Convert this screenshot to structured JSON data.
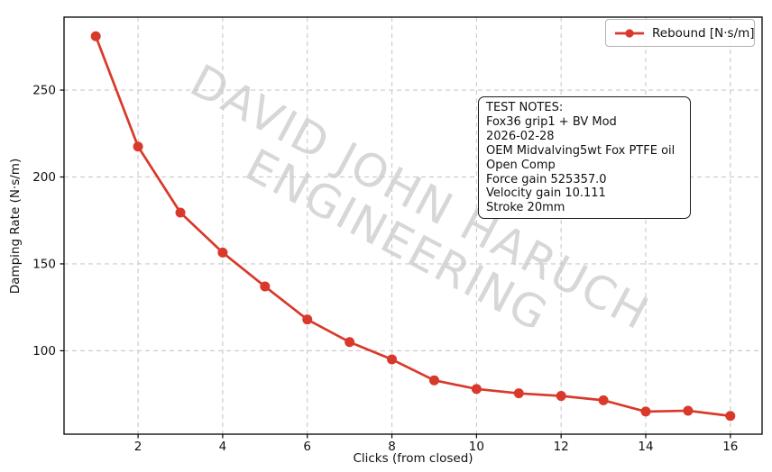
{
  "figure": {
    "watermark": {
      "line1": "DAVID JOHN HARUCH",
      "line2": "ENGINEERING",
      "color": "#d7d7d7"
    },
    "legend": {
      "label": "Rebound [N·s/m]"
    },
    "notes": {
      "lines": [
        "TEST NOTES:",
        "Fox36 grip1 + BV Mod",
        "2026-02-28",
        "OEM Midvalving5wt Fox PTFE oil",
        "Open Comp",
        "Force gain 525357.0",
        "Velocity gain 10.111",
        "Stroke 20mm"
      ]
    }
  },
  "chart_data": {
    "type": "line",
    "title": "",
    "xlabel": "Clicks (from closed)",
    "ylabel": "Damping Rate (N·s/m)",
    "x": [
      1,
      2,
      3,
      4,
      5,
      6,
      7,
      8,
      9,
      10,
      11,
      12,
      13,
      14,
      15,
      16
    ],
    "series": [
      {
        "name": "Rebound [N·s/m]",
        "color": "#d9392b",
        "marker": "circle",
        "values": [
          281,
          217.5,
          179.5,
          156.5,
          137,
          118,
          105,
          95,
          83,
          78,
          75.5,
          74,
          71.5,
          65,
          65.5,
          62.5
        ]
      }
    ],
    "xlim": [
      0.25,
      16.75
    ],
    "ylim": [
      52,
      292
    ],
    "xticks": [
      2,
      4,
      6,
      8,
      10,
      12,
      14,
      16
    ],
    "yticks": [
      100,
      150,
      200,
      250
    ],
    "grid": true,
    "grid_style": "dashed",
    "legend_position": "upper right"
  }
}
